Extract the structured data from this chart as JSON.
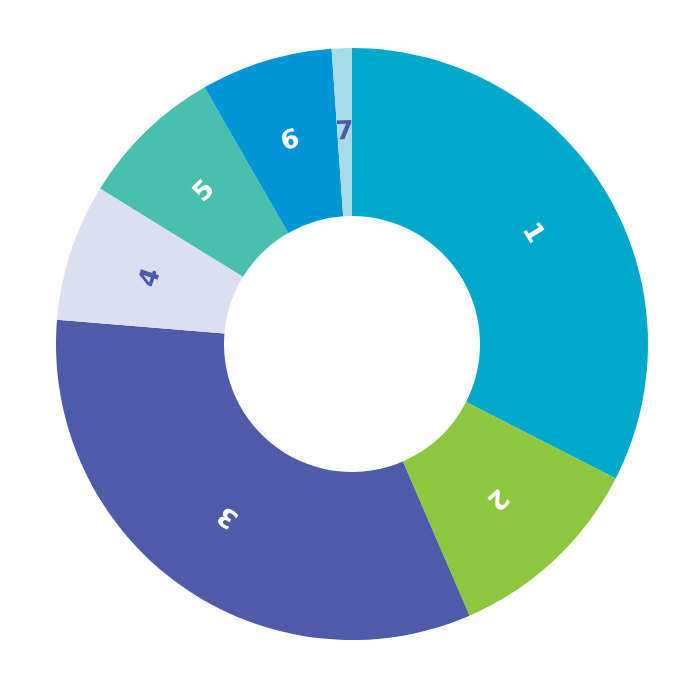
{
  "chart_data": {
    "type": "donut",
    "categories": [
      "1",
      "2",
      "3",
      "4",
      "5",
      "6",
      "7"
    ],
    "values": [
      32.5,
      11,
      32.8,
      7.5,
      7.9,
      7.2,
      1.1
    ],
    "colors": [
      "#00a9c9",
      "#8dc63f",
      "#4f5aa8",
      "#dcdff0",
      "#4bbfad",
      "#0096d6",
      "#a8dbe8"
    ],
    "data_labels": false,
    "legend": false
  }
}
